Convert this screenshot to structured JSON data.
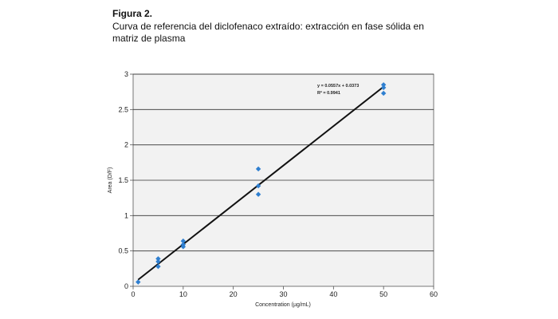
{
  "figure": {
    "title": "Figura 2.",
    "caption": "Curva de referencia del diclofenaco extraído: extracción en fase sólida en matriz de plasma"
  },
  "chart_data": {
    "type": "scatter",
    "xlabel": "Concentration (µg/mL)",
    "ylabel": "Area (D/F)",
    "xlim": [
      0,
      60
    ],
    "ylim": [
      0,
      3
    ],
    "xticks": [
      "0",
      "10",
      "20",
      "30",
      "40",
      "50",
      "60"
    ],
    "yticks": [
      "0",
      "0.5",
      "1",
      "1.5",
      "2",
      "2.5",
      "3"
    ],
    "grid": "horizontal",
    "points": {
      "x": [
        1,
        5,
        5,
        5,
        10,
        10,
        10,
        25,
        25,
        25,
        50,
        50,
        50
      ],
      "y": [
        0.06,
        0.28,
        0.35,
        0.39,
        0.56,
        0.59,
        0.64,
        1.3,
        1.42,
        1.66,
        2.73,
        2.81,
        2.85
      ]
    },
    "trendline": {
      "slope": 0.0557,
      "intercept": 0.0373,
      "x_range": [
        1,
        50
      ]
    },
    "equation": "y = 0.0557x + 0.0373",
    "r_squared": "R² = 0.9941",
    "colors": {
      "marker": "#2f7fd0",
      "trendline": "#111111",
      "plot_background": "#f2f2f2",
      "gridline": "#333333"
    }
  }
}
